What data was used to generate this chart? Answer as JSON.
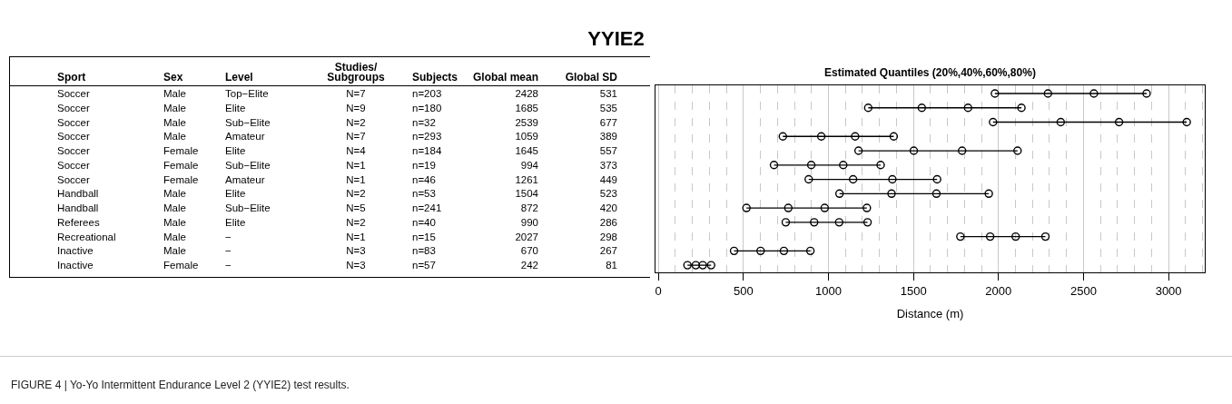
{
  "chart_data": [
    {
      "type": "other",
      "title": "YYIE2",
      "categories": [
        "Sport",
        "Sex",
        "Level",
        "Studies/\nSubgroups",
        "Subjects",
        "Global mean",
        "Global SD"
      ],
      "annotations": [
        "Soccer",
        "Male",
        "Top−Elite",
        "N=7",
        "n=203",
        "2428",
        "531",
        "Soccer",
        "Male",
        "Elite",
        "N=9",
        "n=180",
        "1685",
        "535",
        "Soccer",
        "Male",
        "Sub−Elite",
        "N=2",
        "n=32",
        "2539",
        "677",
        "Soccer",
        "Male",
        "Amateur",
        "N=7",
        "n=293",
        "1059",
        "389",
        "Soccer",
        "Female",
        "Elite",
        "N=4",
        "n=184",
        "1645",
        "557",
        "Soccer",
        "Female",
        "Sub−Elite",
        "N=1",
        "n=19",
        "994",
        "373",
        "Soccer",
        "Female",
        "Amateur",
        "N=1",
        "n=46",
        "1261",
        "449",
        "Handball",
        "Male",
        "Elite",
        "N=2",
        "n=53",
        "1504",
        "523",
        "Handball",
        "Male",
        "Sub−Elite",
        "N=5",
        "n=241",
        "872",
        "420",
        "Referees",
        "Male",
        "Elite",
        "N=2",
        "n=40",
        "990",
        "286",
        "Recreational",
        "Male",
        "−",
        "N=1",
        "n=15",
        "2027",
        "298",
        "Inactive",
        "Male",
        "−",
        "N=3",
        "n=83",
        "670",
        "267",
        "Inactive",
        "Female",
        "−",
        "N=3",
        "n=57",
        "242",
        "81"
      ]
    },
    {
      "type": "scatter",
      "orientation": "horizontal",
      "title": "Estimated Quantiles (20%,40%,60%,80%)",
      "xlabel": "Distance (m)",
      "categories": [
        null,
        null,
        null,
        null,
        null,
        null,
        null,
        null,
        null,
        null,
        null,
        null,
        null
      ],
      "series": [
        {
          "color": "#000000",
          "values": [
            1979,
            1234,
            1968,
            732,
            1177,
            680,
            884,
            1065,
            518,
            749,
            1776,
            445,
            171
          ]
        },
        {
          "color": "#000000",
          "values": [
            2291,
            1549,
            2366,
            958,
            1502,
            899,
            1145,
            1371,
            764,
            916,
            1951,
            601,
            220
          ]
        },
        {
          "color": "#000000",
          "values": [
            2561,
            1821,
            2709,
            1157,
            1786,
            1087,
            1376,
            1635,
            978,
            1063,
            2101,
            738,
            261
          ]
        },
        {
          "color": "#000000",
          "values": [
            2871,
            2135,
            3107,
            1384,
            2112,
            1307,
            1639,
            1943,
            1226,
            1230,
            2276,
            894,
            310
          ]
        }
      ],
      "xlim": [
        -17,
        3213
      ],
      "xticks": [
        0,
        500,
        1000,
        1500,
        2000,
        2500,
        3000
      ],
      "grid": "x",
      "marker": "circle",
      "tick_labels": "x",
      "annotations": [
        "FIGURE 4 | Yo-Yo Intermittent Endurance Level 2 (YYIE2) test results."
      ]
    }
  ]
}
